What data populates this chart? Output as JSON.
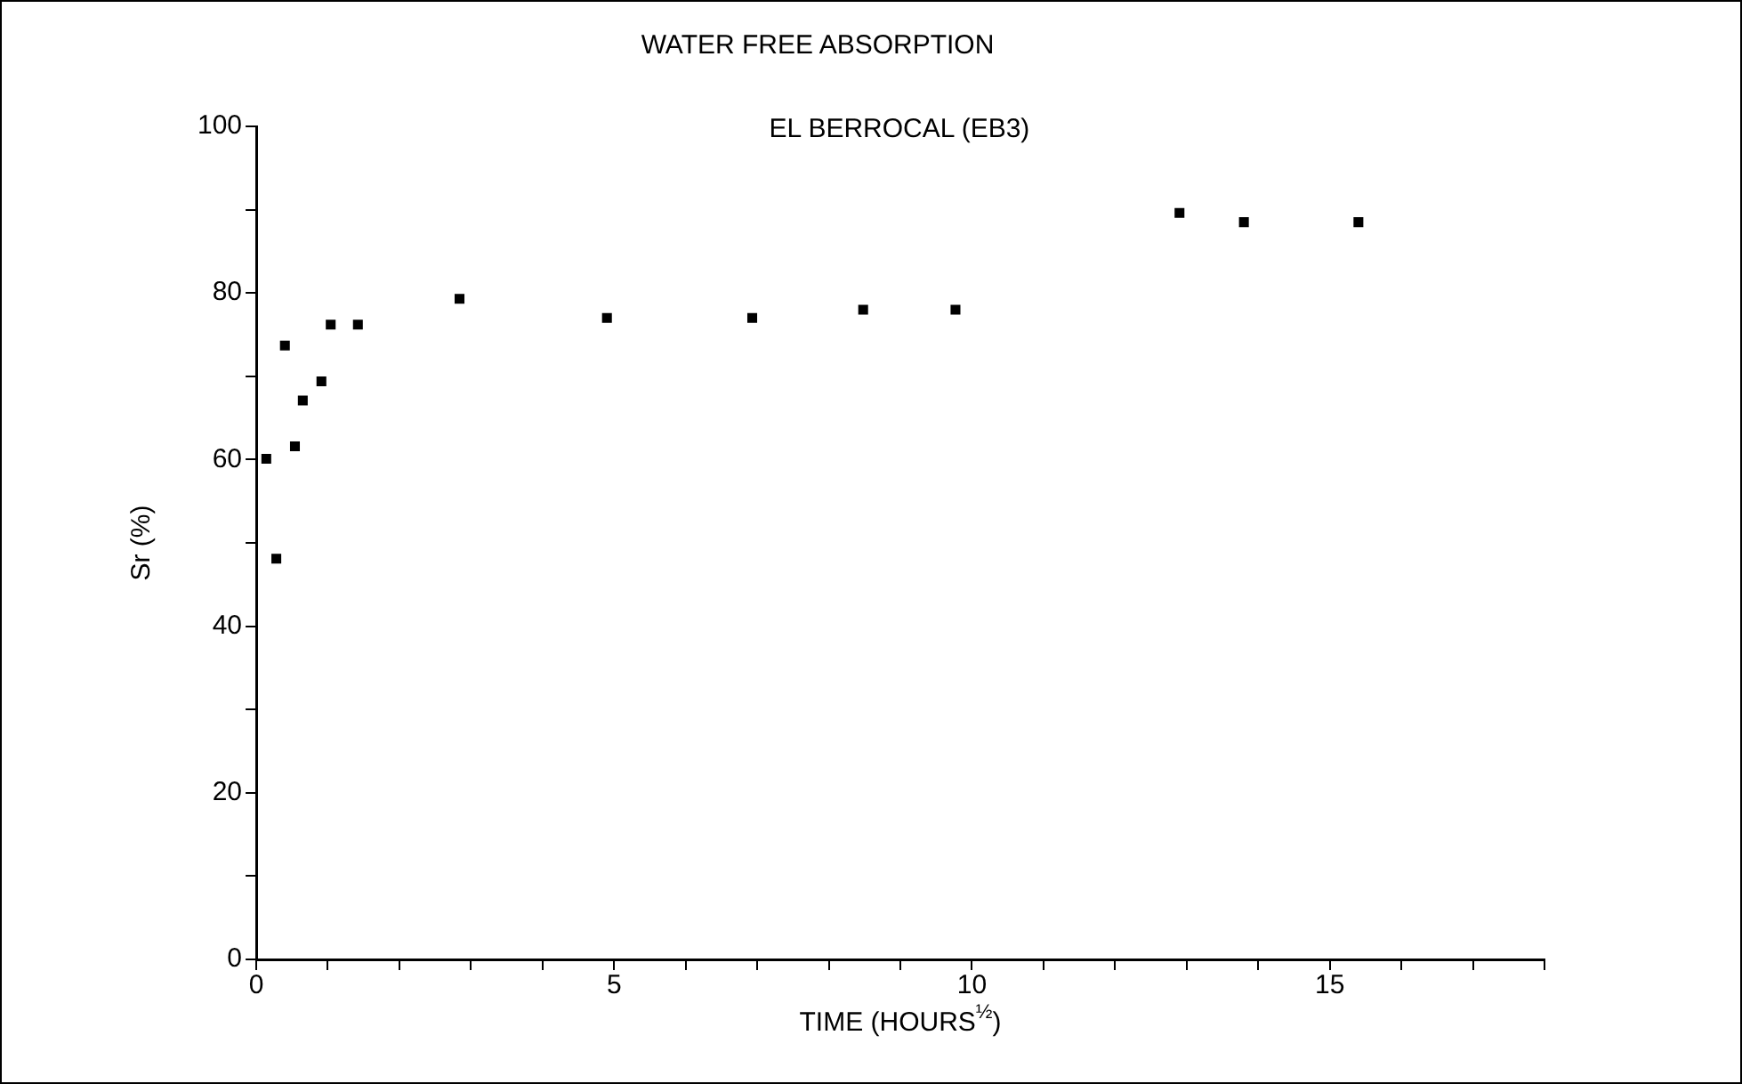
{
  "chart_data": {
    "type": "scatter",
    "title": "WATER FREE ABSORPTION",
    "subtitle": "EL BERROCAL (EB3)",
    "xlabel": "TIME (HOURS$^{½}$)",
    "ylabel": "Sr (%)",
    "x": [
      0.14,
      0.28,
      0.4,
      0.54,
      0.65,
      0.91,
      1.04,
      1.42,
      2.84,
      4.9,
      6.93,
      8.48,
      9.77,
      12.9,
      13.8,
      15.4
    ],
    "series": [
      {
        "color": "#000000",
        "values": [
          60.1,
          48.1,
          73.7,
          61.6,
          67.1,
          69.4,
          76.2,
          76.2,
          79.3,
          77.0,
          77.0,
          78.0,
          78.0,
          89.6,
          88.5,
          88.5
        ]
      }
    ],
    "marker": "square",
    "grid": false,
    "legend": false,
    "xlim": [
      0,
      18
    ],
    "xticks": [
      0,
      {
        "value": 1,
        "label": null
      },
      {
        "value": 2,
        "label": null
      },
      {
        "value": 3,
        "label": null
      },
      {
        "value": 4,
        "label": null
      },
      5,
      {
        "value": 6,
        "label": null
      },
      {
        "value": 7,
        "label": null
      },
      {
        "value": 8,
        "label": null
      },
      {
        "value": 9,
        "label": null
      },
      10,
      {
        "value": 11,
        "label": null
      },
      {
        "value": 12,
        "label": null
      },
      {
        "value": 13,
        "label": null
      },
      {
        "value": 14,
        "label": null
      },
      15,
      {
        "value": 16,
        "label": null
      },
      {
        "value": 17,
        "label": null
      },
      {
        "value": 18,
        "label": null
      }
    ],
    "ylim": [
      0,
      100
    ],
    "yticks": [
      0,
      {
        "value": 10,
        "label": null
      },
      20,
      {
        "value": 30,
        "label": null
      },
      40,
      {
        "value": 50,
        "label": null
      },
      60,
      {
        "value": 70,
        "label": null
      },
      80,
      {
        "value": 90,
        "label": null
      },
      100
    ]
  }
}
